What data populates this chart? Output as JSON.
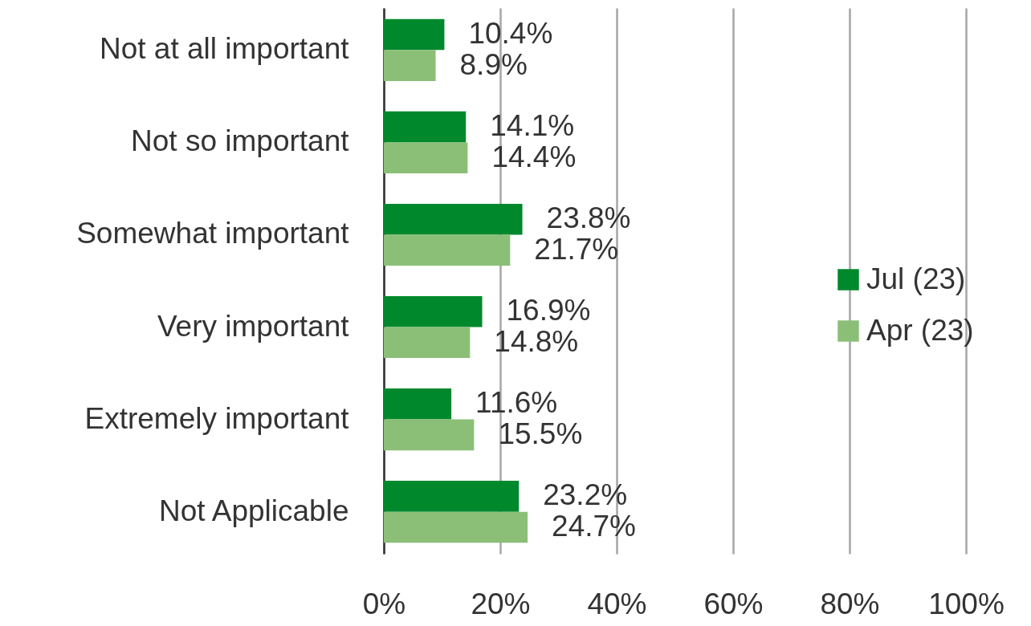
{
  "chart_data": {
    "type": "bar",
    "orientation": "horizontal",
    "categories": [
      "Not at all important",
      "Not so important",
      "Somewhat important",
      "Very important",
      "Extremely important",
      "Not Applicable"
    ],
    "series": [
      {
        "name": "Jul (23)",
        "color": "#00882d",
        "values": [
          10.4,
          14.1,
          23.8,
          16.9,
          11.6,
          23.2
        ],
        "value_labels": [
          "10.4%",
          "14.1%",
          "23.8%",
          "16.9%",
          "11.6%",
          "23.2%"
        ]
      },
      {
        "name": "Apr (23)",
        "color": "#8bbf77",
        "values": [
          8.9,
          14.4,
          21.7,
          14.8,
          15.5,
          24.7
        ],
        "value_labels": [
          "8.9%",
          "14.4%",
          "21.7%",
          "14.8%",
          "15.5%",
          "24.7%"
        ]
      }
    ],
    "xlim": [
      0,
      100
    ],
    "xticks": [
      {
        "value": 0,
        "label": "0%"
      },
      {
        "value": 20,
        "label": "20%"
      },
      {
        "value": 40,
        "label": "40%"
      },
      {
        "value": 60,
        "label": "60%"
      },
      {
        "value": 80,
        "label": "80%"
      },
      {
        "value": 100,
        "label": "100%"
      }
    ],
    "grid": "x",
    "legend": "right"
  }
}
